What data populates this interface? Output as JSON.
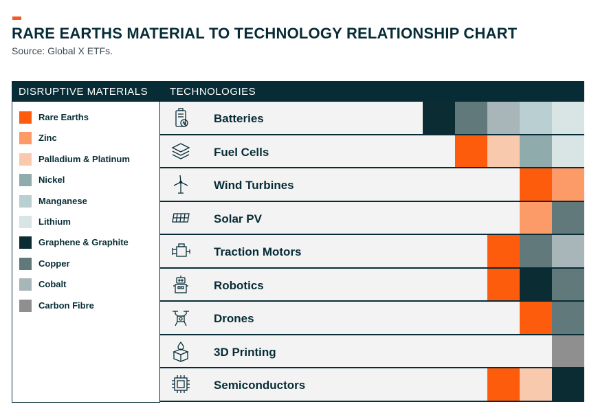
{
  "title": "RARE EARTHS MATERIAL TO TECHNOLOGY RELATIONSHIP CHART",
  "subtitle": "Source: Global X ETFs.",
  "accent_color": "#f15a22",
  "headers": {
    "left": "DISRUPTIVE MATERIALS",
    "right": "TECHNOLOGIES"
  },
  "chart_data": {
    "type": "table",
    "materials": [
      {
        "name": "Rare Earths",
        "color": "#fe5c0d"
      },
      {
        "name": "Zinc",
        "color": "#fd9b68"
      },
      {
        "name": "Palladium & Platinum",
        "color": "#f9c9ae"
      },
      {
        "name": "Nickel",
        "color": "#8fabab"
      },
      {
        "name": "Manganese",
        "color": "#bacfd1"
      },
      {
        "name": "Lithium",
        "color": "#d9e4e4"
      },
      {
        "name": "Graphene & Graphite",
        "color": "#0a2c32"
      },
      {
        "name": "Copper",
        "color": "#62797c"
      },
      {
        "name": "Cobalt",
        "color": "#a9b6b9"
      },
      {
        "name": "Carbon Fibre",
        "color": "#8f8f8f"
      }
    ],
    "technologies": [
      {
        "name": "Batteries",
        "icon": "battery-icon",
        "materials": [
          "Graphene & Graphite",
          "Copper",
          "Cobalt",
          "Manganese",
          "Lithium"
        ]
      },
      {
        "name": "Fuel Cells",
        "icon": "layers-icon",
        "materials": [
          "Rare Earths",
          "Palladium & Platinum",
          "Nickel",
          "Lithium"
        ]
      },
      {
        "name": "Wind Turbines",
        "icon": "wind-turbine-icon",
        "materials": [
          "Rare Earths",
          "Zinc"
        ]
      },
      {
        "name": "Solar PV",
        "icon": "solar-panel-icon",
        "materials": [
          "Zinc",
          "Copper"
        ]
      },
      {
        "name": "Traction Motors",
        "icon": "motor-icon",
        "materials": [
          "Rare Earths",
          "Copper",
          "Cobalt"
        ]
      },
      {
        "name": "Robotics",
        "icon": "robot-icon",
        "materials": [
          "Rare Earths",
          "Graphene & Graphite",
          "Copper"
        ]
      },
      {
        "name": "Drones",
        "icon": "drone-icon",
        "materials": [
          "Rare Earths",
          "Copper"
        ]
      },
      {
        "name": "3D Printing",
        "icon": "3d-printing-icon",
        "materials": [
          "Carbon Fibre"
        ]
      },
      {
        "name": "Semiconductors",
        "icon": "chip-icon",
        "materials": [
          "Rare Earths",
          "Palladium & Platinum",
          "Graphene & Graphite"
        ]
      }
    ]
  }
}
